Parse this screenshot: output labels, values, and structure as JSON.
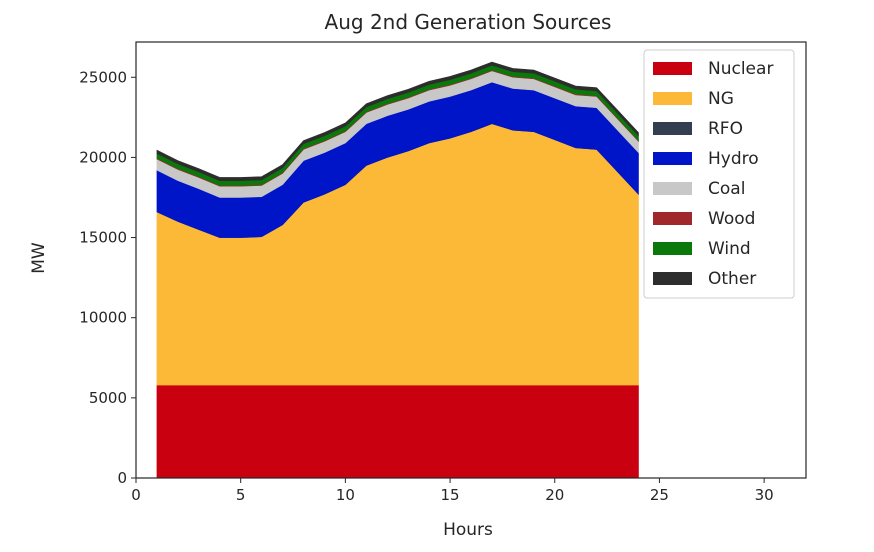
{
  "chart_data": {
    "type": "area",
    "stacked": true,
    "title": "Aug 2nd Generation Sources",
    "xlabel": "Hours",
    "ylabel": "MW",
    "xlim": [
      0,
      32
    ],
    "ylim": [
      0,
      27200
    ],
    "xticks": [
      0,
      5,
      10,
      15,
      20,
      25,
      30
    ],
    "yticks": [
      0,
      5000,
      10000,
      15000,
      20000,
      25000
    ],
    "grid": false,
    "legend_position": "top-right",
    "x": [
      1,
      2,
      3,
      4,
      5,
      6,
      7,
      8,
      9,
      10,
      11,
      12,
      13,
      14,
      15,
      16,
      17,
      18,
      19,
      20,
      21,
      22,
      23,
      24
    ],
    "series": [
      {
        "name": "Nuclear",
        "color": "#c8000f",
        "values": [
          5800,
          5800,
          5800,
          5800,
          5800,
          5800,
          5800,
          5800,
          5800,
          5800,
          5800,
          5800,
          5800,
          5800,
          5800,
          5800,
          5800,
          5800,
          5800,
          5800,
          5800,
          5800,
          5800,
          5800
        ]
      },
      {
        "name": "NG",
        "color": "#fcb937",
        "values": [
          10800,
          10200,
          9700,
          9200,
          9200,
          9250,
          10000,
          11400,
          11900,
          12500,
          13700,
          14200,
          14600,
          15100,
          15400,
          15800,
          16300,
          15900,
          15800,
          15300,
          14800,
          14700,
          13300,
          11900
        ]
      },
      {
        "name": "RFO",
        "color": "#333f50",
        "values": [
          0,
          0,
          0,
          0,
          0,
          0,
          0,
          0,
          0,
          0,
          0,
          0,
          0,
          0,
          0,
          0,
          0,
          0,
          0,
          0,
          0,
          0,
          0,
          0
        ]
      },
      {
        "name": "Hydro",
        "color": "#0014c8",
        "values": [
          2600,
          2550,
          2550,
          2500,
          2500,
          2500,
          2500,
          2600,
          2600,
          2600,
          2600,
          2600,
          2600,
          2600,
          2600,
          2600,
          2600,
          2600,
          2600,
          2600,
          2600,
          2600,
          2600,
          2600
        ]
      },
      {
        "name": "Coal",
        "color": "#c8c8c8",
        "values": [
          700,
          700,
          700,
          700,
          700,
          700,
          700,
          700,
          700,
          700,
          700,
          700,
          700,
          700,
          700,
          700,
          700,
          700,
          700,
          700,
          700,
          700,
          700,
          700
        ]
      },
      {
        "name": "Wood",
        "color": "#a0282d",
        "values": [
          50,
          50,
          50,
          50,
          50,
          50,
          50,
          50,
          50,
          50,
          50,
          50,
          50,
          50,
          50,
          50,
          50,
          50,
          50,
          50,
          50,
          50,
          50,
          50
        ]
      },
      {
        "name": "Wind",
        "color": "#0a780a",
        "values": [
          300,
          300,
          300,
          300,
          300,
          300,
          300,
          300,
          300,
          300,
          300,
          300,
          300,
          300,
          300,
          300,
          300,
          300,
          300,
          300,
          300,
          300,
          300,
          300
        ]
      },
      {
        "name": "Other",
        "color": "#2d2d2d",
        "values": [
          200,
          200,
          200,
          200,
          200,
          200,
          200,
          200,
          200,
          200,
          200,
          200,
          200,
          200,
          200,
          200,
          200,
          200,
          200,
          200,
          200,
          200,
          200,
          200
        ]
      }
    ]
  }
}
